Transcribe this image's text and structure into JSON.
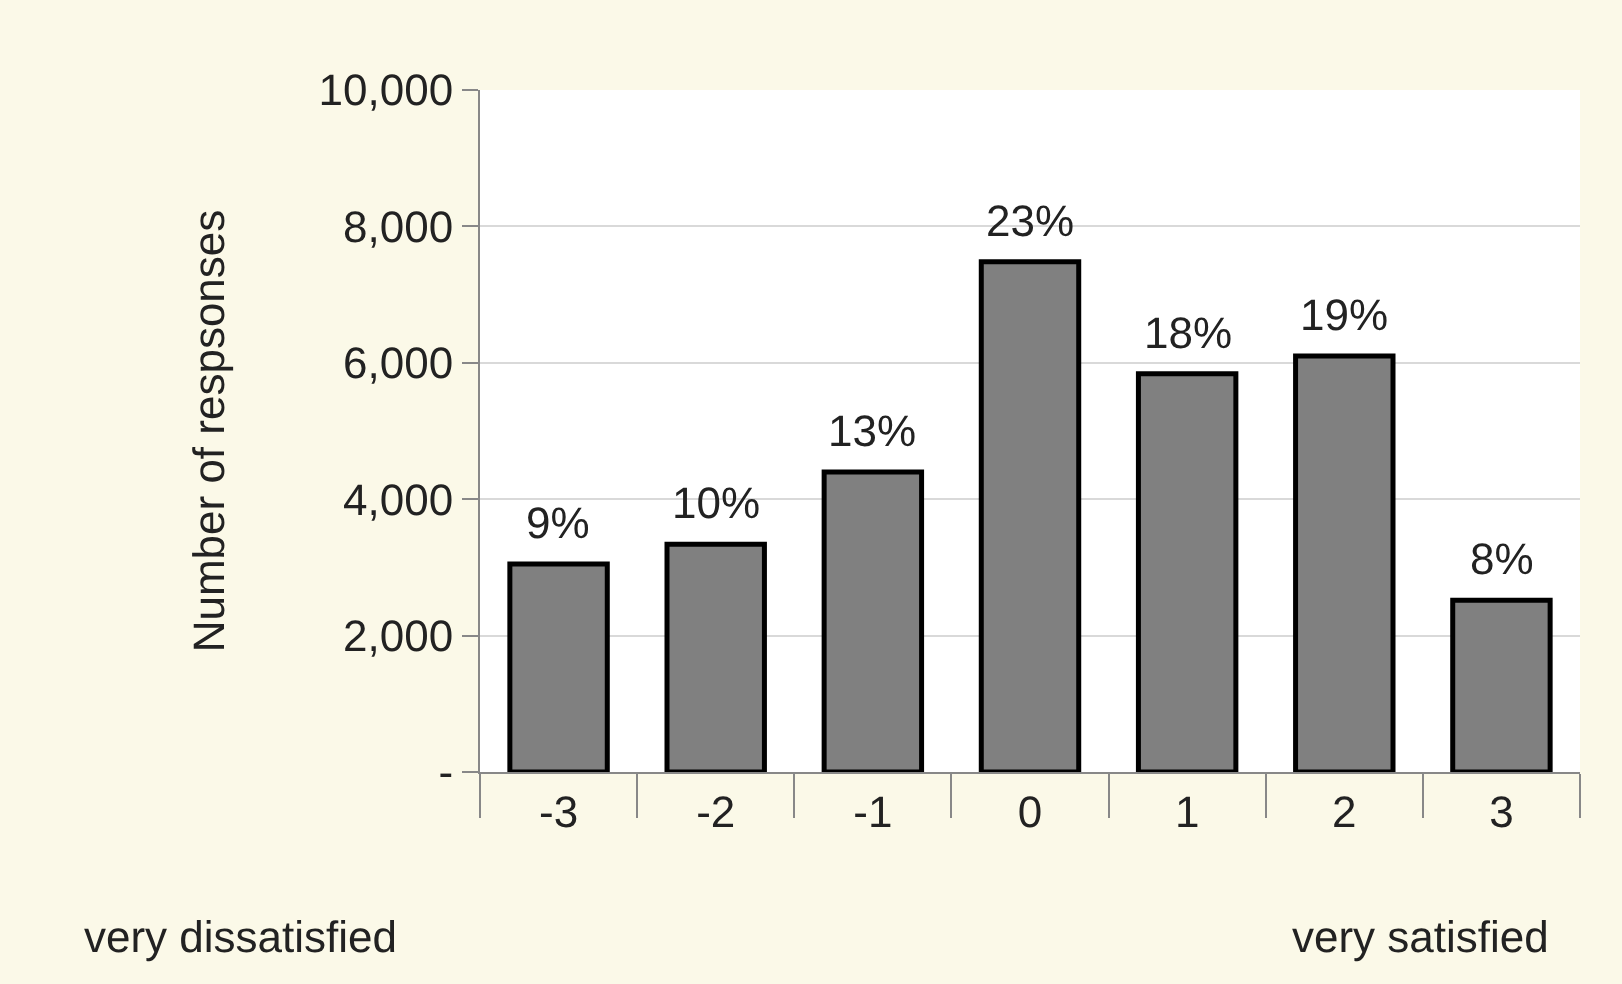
{
  "chart_data": {
    "type": "bar",
    "ylabel": "Number of respsonses",
    "categories": [
      "-3",
      "-2",
      "-1",
      "0",
      "1",
      "2",
      "3"
    ],
    "values": [
      3050,
      3340,
      4400,
      7480,
      5840,
      6100,
      2520
    ],
    "color": "#808080",
    "ylim": [
      0,
      10000
    ],
    "yticks": [
      {
        "value": 0,
        "label": "-"
      },
      {
        "value": 2000,
        "label": "2,000"
      },
      {
        "value": 4000,
        "label": "4,000"
      },
      {
        "value": 6000,
        "label": "6,000"
      },
      {
        "value": 8000,
        "label": "8,000"
      },
      {
        "value": 10000,
        "label": "10,000"
      }
    ],
    "grid": "y",
    "annotations": [
      {
        "text": "9%",
        "x": "-3",
        "y": 3050
      },
      {
        "text": "10%",
        "x": "-2",
        "y": 3340
      },
      {
        "text": "13%",
        "x": "-1",
        "y": 4400
      },
      {
        "text": "23%",
        "x": "0",
        "y": 7480
      },
      {
        "text": "18%",
        "x": "1",
        "y": 5840
      },
      {
        "text": "19%",
        "x": "2",
        "y": 6100
      },
      {
        "text": "8%",
        "x": "3",
        "y": 2520
      },
      "very dissatisfied",
      "very satisfied"
    ]
  }
}
